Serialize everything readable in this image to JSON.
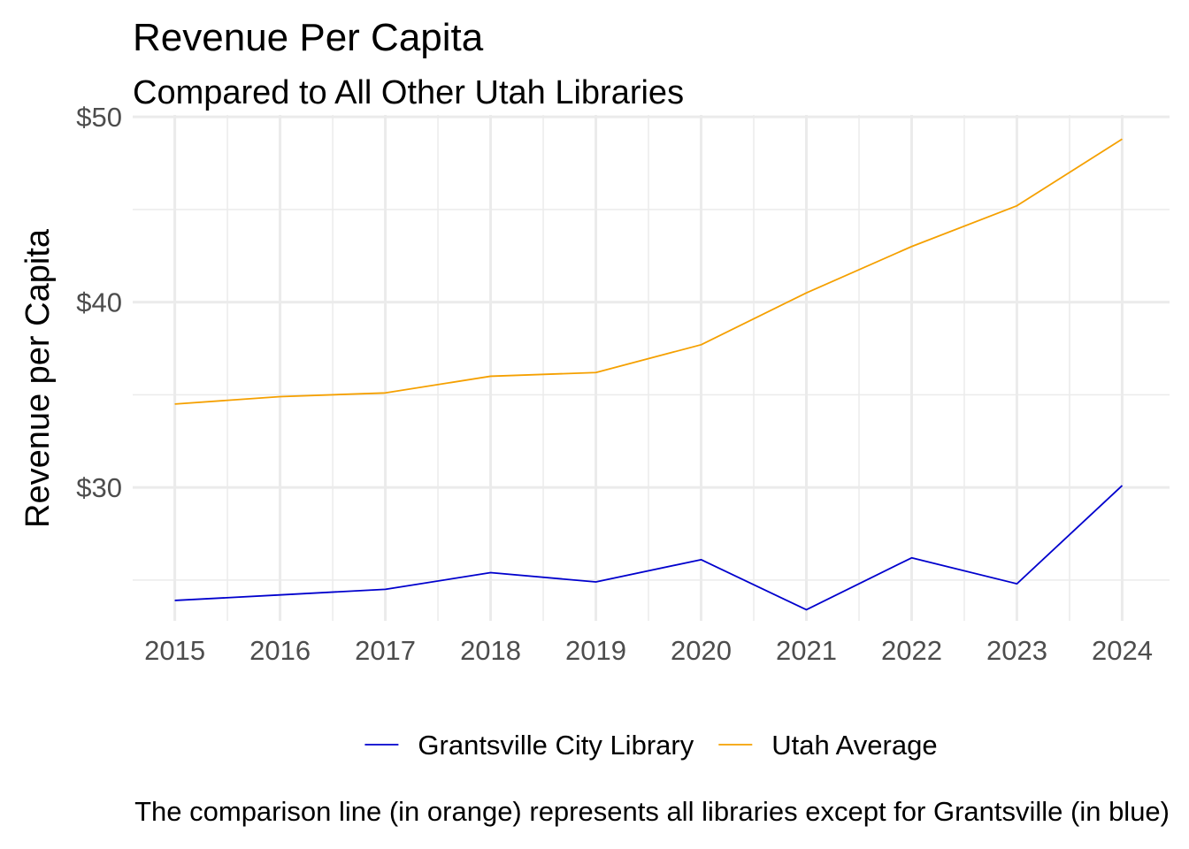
{
  "chart_data": {
    "type": "line",
    "title": "Revenue Per Capita",
    "subtitle": "Compared to All Other Utah Libraries",
    "xlabel": "",
    "ylabel": "Revenue per Capita",
    "caption": "The comparison line (in orange) represents all libraries except for Grantsville (in blue)",
    "x": [
      2015,
      2016,
      2017,
      2018,
      2019,
      2020,
      2021,
      2022,
      2023,
      2024
    ],
    "x_tick_labels": [
      "2015",
      "2016",
      "2017",
      "2018",
      "2019",
      "2020",
      "2021",
      "2022",
      "2023",
      "2024"
    ],
    "xlim": [
      2014.6,
      2024.45
    ],
    "ylim": [
      22.8,
      50.1
    ],
    "y_ticks": [
      30,
      40,
      50
    ],
    "y_tick_labels": [
      "$30",
      "$40",
      "$50"
    ],
    "y_minor_ticks": [
      25,
      35,
      45
    ],
    "grid": true,
    "legend_position": "bottom",
    "series": [
      {
        "name": "Grantsville City Library",
        "color": "#0000CD",
        "values": [
          23.9,
          24.2,
          24.5,
          25.4,
          24.9,
          26.1,
          23.4,
          26.2,
          24.8,
          30.1
        ]
      },
      {
        "name": "Utah Average",
        "color": "#F5A000",
        "values": [
          34.5,
          34.9,
          35.1,
          36.0,
          36.2,
          37.7,
          40.5,
          43.0,
          45.2,
          48.8
        ]
      }
    ]
  }
}
